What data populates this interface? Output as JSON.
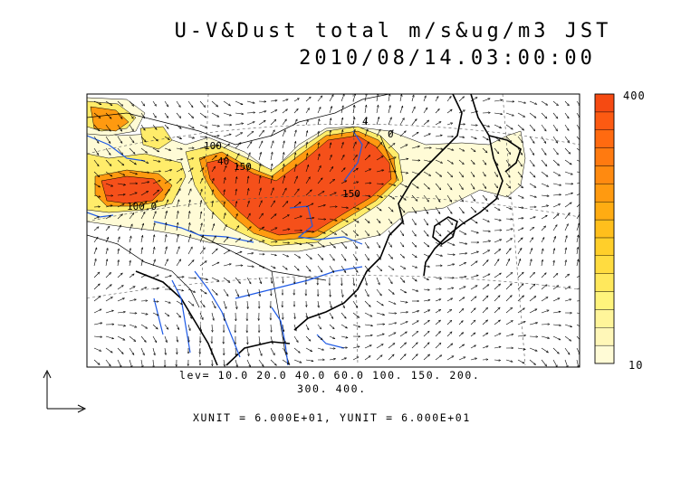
{
  "title": {
    "line1": "U-V&Dust total m/s&ug/m3 JST",
    "line2": "2010/08/14.03:00:00"
  },
  "colorbar": {
    "top_label": "400",
    "bottom_label": "10",
    "colors": [
      "#fffbd6",
      "#fff7b8",
      "#fff59a",
      "#fff47c",
      "#ffe85c",
      "#ffdc40",
      "#ffcf2a",
      "#ffbf1c",
      "#ffac12",
      "#ff9a10",
      "#ff8a10",
      "#ff7a10",
      "#ff6a10",
      "#fc5a12",
      "#f54a12"
    ]
  },
  "contour_levels": {
    "line1": "lev= 10.0 20.0 40.0 60.0 100. 150. 200.",
    "line2": "300. 400."
  },
  "units": "XUNIT = 6.000E+01, YUNIT = 6.000E+01",
  "map_labels": {
    "label_40a": "40",
    "label_100a": "100",
    "label_150a": "150",
    "label_100b": "100.0",
    "label_150b": "150",
    "label_40b": "4",
    "label_0": "0"
  }
}
